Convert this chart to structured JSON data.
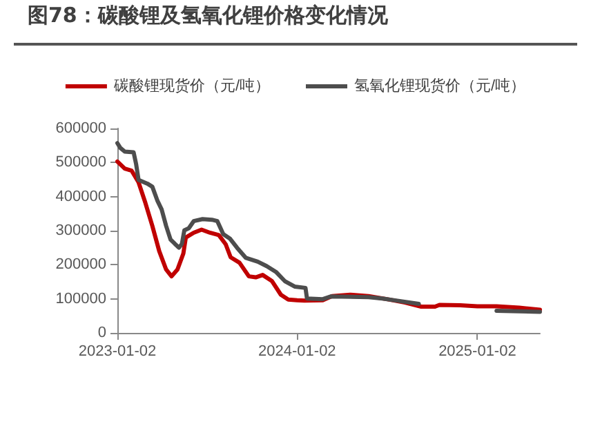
{
  "chart_data": {
    "type": "line",
    "title": "图78：碳酸锂及氢氧化锂价格变化情况",
    "xlim": [
      "2023-01-02",
      "2025-05-09"
    ],
    "xticks": [
      "2023-01-02",
      "2024-01-02",
      "2025-01-02"
    ],
    "ylim": [
      0,
      600000
    ],
    "yticks": [
      0,
      100000,
      200000,
      300000,
      400000,
      500000,
      600000
    ],
    "grid": false,
    "legend": "top",
    "marker": "none",
    "line_style": "solid",
    "series": [
      {
        "name": "碳酸锂现货价（元/吨）",
        "color": "#c00000",
        "x": [
          "2023-01-02",
          "2023-01-17",
          "2023-01-31",
          "2023-02-14",
          "2023-02-28",
          "2023-03-14",
          "2023-03-28",
          "2023-04-11",
          "2023-04-22",
          "2023-05-04",
          "2023-05-16",
          "2023-05-21",
          "2023-06-06",
          "2023-06-22",
          "2023-07-09",
          "2023-07-27",
          "2023-08-10",
          "2023-08-20",
          "2023-09-07",
          "2023-09-26",
          "2023-10-10",
          "2023-10-24",
          "2023-11-12",
          "2023-11-30",
          "2023-12-15",
          "2024-01-02",
          "2024-01-17",
          "2024-02-23",
          "2024-03-13",
          "2024-04-19",
          "2024-05-26",
          "2024-07-02",
          "2024-08-08",
          "2024-09-10",
          "2024-10-08",
          "2024-10-17",
          "2024-11-28",
          "2025-01-02",
          "2025-02-10",
          "2025-03-28",
          "2025-05-09"
        ],
        "values": [
          503000,
          482000,
          476000,
          442000,
          381000,
          314000,
          240000,
          186000,
          166000,
          186000,
          233000,
          280000,
          294000,
          303000,
          294000,
          287000,
          260000,
          222000,
          206000,
          166000,
          163000,
          170000,
          152000,
          112000,
          98000,
          96000,
          95000,
          96000,
          108000,
          112000,
          108000,
          99000,
          89000,
          77000,
          77000,
          82000,
          81000,
          78000,
          78000,
          74000,
          68000
        ]
      },
      {
        "name": "氢氧化锂现货价（元/吨）",
        "color": "#4d4d4d",
        "x": [
          "2023-01-02",
          "2023-01-08",
          "2023-01-17",
          "2023-02-04",
          "2023-02-09",
          "2023-02-14",
          "2023-03-04",
          "2023-03-14",
          "2023-03-24",
          "2023-04-02",
          "2023-04-11",
          "2023-04-20",
          "2023-04-29",
          "2023-05-07",
          "2023-05-13",
          "2023-05-18",
          "2023-05-27",
          "2023-06-06",
          "2023-06-24",
          "2023-07-13",
          "2023-07-24",
          "2023-08-05",
          "2023-08-19",
          "2023-09-02",
          "2023-09-20",
          "2023-10-14",
          "2023-11-01",
          "2023-11-20",
          "2023-12-08",
          "2023-12-28",
          "2024-01-19",
          "2024-01-22",
          "2024-02-23",
          "2024-03-11",
          "2024-05-26",
          "2024-06-23",
          "2024-07-21",
          "2024-09-05",
          "2024-11-01",
          "2025-02-10",
          "2025-05-09"
        ],
        "values": [
          557000,
          543000,
          532000,
          530000,
          496000,
          449000,
          438000,
          429000,
          389000,
          362000,
          314000,
          274000,
          261000,
          250000,
          261000,
          301000,
          307000,
          328000,
          334000,
          332000,
          328000,
          290000,
          276000,
          250000,
          220000,
          209000,
          196000,
          179000,
          152000,
          136000,
          132000,
          101000,
          99000,
          107000,
          105000,
          101000,
          95000,
          85000,
          null,
          65000,
          62000
        ]
      }
    ]
  }
}
